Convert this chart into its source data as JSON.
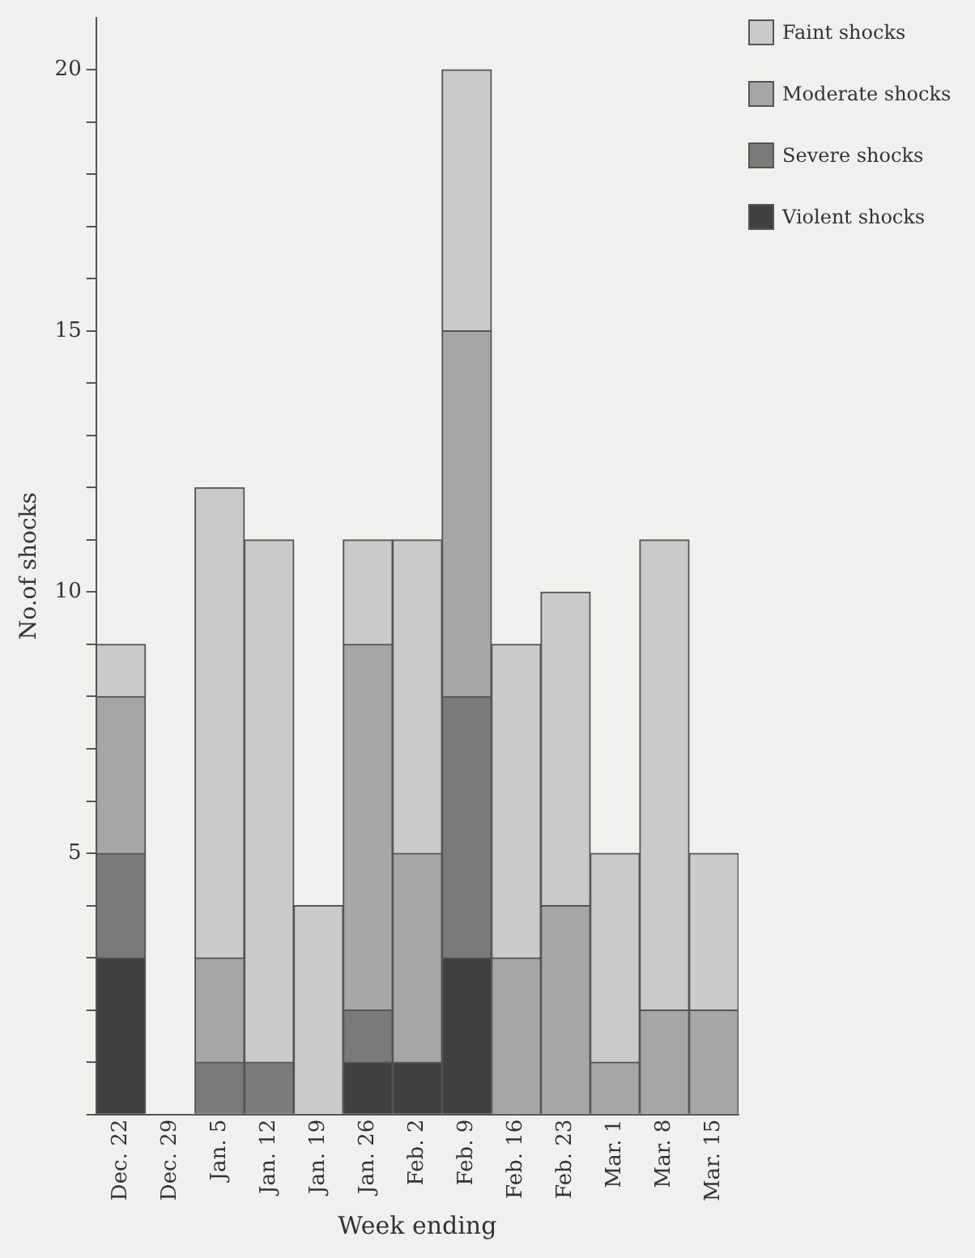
{
  "chart_data": {
    "type": "bar",
    "stacked": true,
    "xlabel": "Week ending",
    "ylabel": "No.of shocks",
    "categories": [
      "Dec. 22",
      "Dec. 29",
      "Jan. 5",
      "Jan. 12",
      "Jan. 19",
      "Jan. 26",
      "Feb. 2",
      "Feb. 9",
      "Feb. 16",
      "Feb. 23",
      "Mar. 1",
      "Mar. 8",
      "Mar. 15"
    ],
    "series": [
      {
        "name": "Violent shocks",
        "color": "#404040",
        "values": [
          3,
          0,
          0,
          0,
          0,
          1,
          1,
          3,
          0,
          0,
          0,
          0,
          0
        ]
      },
      {
        "name": "Severe shocks",
        "color": "#7a7a7a",
        "values": [
          2,
          0,
          1,
          1,
          0,
          1,
          0,
          5,
          0,
          0,
          0,
          0,
          0
        ]
      },
      {
        "name": "Moderate shocks",
        "color": "#a6a6a6",
        "values": [
          3,
          0,
          2,
          0,
          0,
          7,
          4,
          7,
          3,
          4,
          1,
          2,
          2
        ]
      },
      {
        "name": "Faint shocks",
        "color": "#cacaca",
        "values": [
          1,
          0,
          9,
          10,
          4,
          2,
          6,
          5,
          6,
          6,
          4,
          9,
          3
        ]
      }
    ],
    "ylim": [
      0,
      21
    ],
    "yticks": [
      {
        "value": 0,
        "label": null
      },
      {
        "value": 1,
        "label": null
      },
      {
        "value": 2,
        "label": null
      },
      {
        "value": 3,
        "label": null
      },
      {
        "value": 4,
        "label": null
      },
      5,
      {
        "value": 6,
        "label": null
      },
      {
        "value": 7,
        "label": null
      },
      {
        "value": 8,
        "label": null
      },
      {
        "value": 9,
        "label": null
      },
      10,
      {
        "value": 11,
        "label": null
      },
      {
        "value": 12,
        "label": null
      },
      {
        "value": 13,
        "label": null
      },
      {
        "value": 14,
        "label": null
      },
      15,
      {
        "value": 16,
        "label": null
      },
      {
        "value": 17,
        "label": null
      },
      {
        "value": 18,
        "label": null
      },
      {
        "value": 19,
        "label": null
      },
      20
    ],
    "grid": false,
    "legend": "right"
  }
}
